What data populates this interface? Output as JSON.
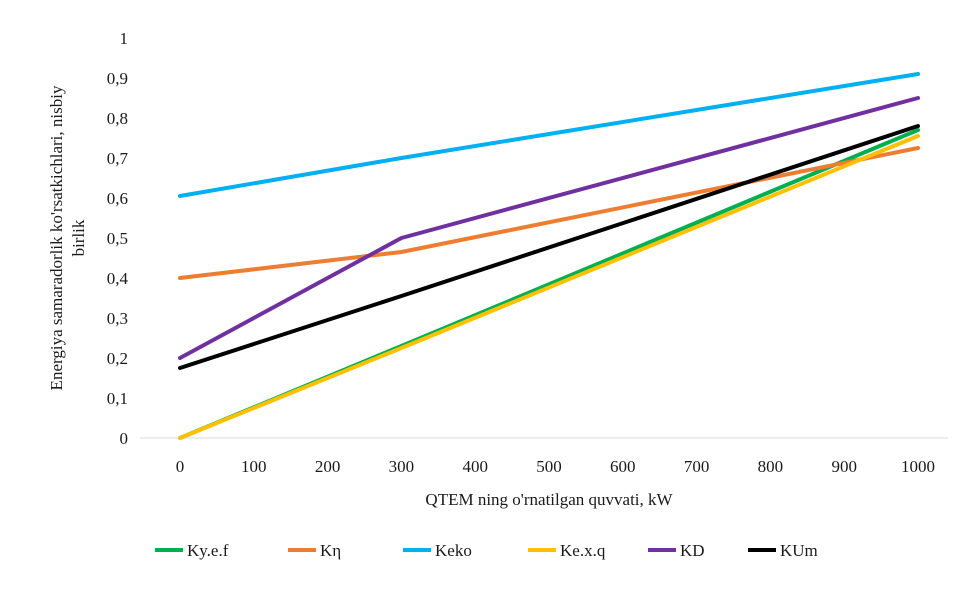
{
  "chart_data": {
    "type": "line",
    "title": "",
    "xlabel": "QTEM ning o'rnatilgan quvvati, kW",
    "ylabel_lines": [
      "Energiya samaradorlik ko'rsatkichlari, nisbiy",
      "birlik"
    ],
    "x": [
      0,
      300,
      1000
    ],
    "x_ticks": [
      "0",
      "100",
      "200",
      "300",
      "400",
      "500",
      "600",
      "700",
      "800",
      "900",
      "1000"
    ],
    "xlim": [
      0,
      1000
    ],
    "y_ticks": [
      "0",
      "0,1",
      "0,2",
      "0,3",
      "0,4",
      "0,5",
      "0,6",
      "0,7",
      "0,8",
      "0,9",
      "1"
    ],
    "ylim": [
      0,
      1
    ],
    "grid": false,
    "legend_position": "bottom",
    "series": [
      {
        "name": "Ky.e.f",
        "color": "#00b050",
        "values": [
          0.0,
          0.23,
          0.77
        ]
      },
      {
        "name": "Kη",
        "color": "#ed7d31",
        "values": [
          0.4,
          0.465,
          0.725
        ]
      },
      {
        "name": "Keko",
        "color": "#00b0f0",
        "values": [
          0.605,
          0.7,
          0.91
        ]
      },
      {
        "name": "Ke.x.q",
        "color": "#ffc000",
        "values": [
          0.0,
          0.225,
          0.755
        ]
      },
      {
        "name": "KD",
        "color": "#7030a0",
        "values": [
          0.2,
          0.5,
          0.85
        ]
      },
      {
        "name": "KUm",
        "color": "#000000",
        "values": [
          0.175,
          0.355,
          0.78
        ]
      }
    ]
  }
}
